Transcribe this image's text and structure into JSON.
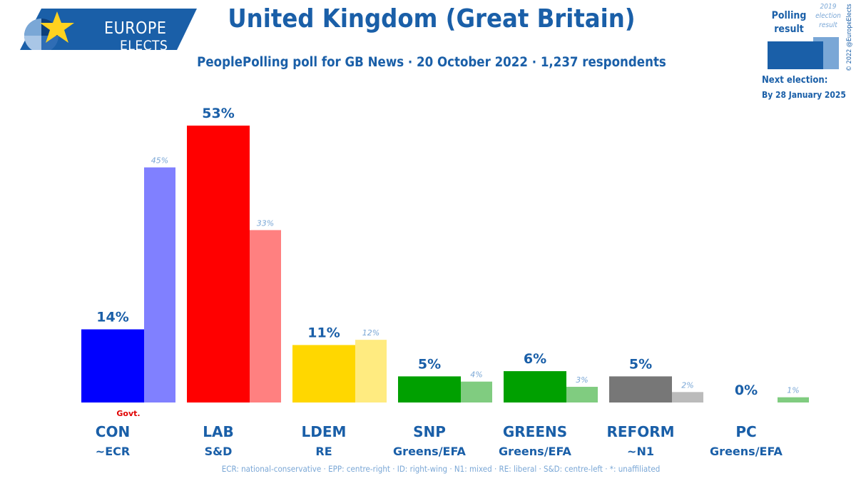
{
  "logo": {
    "line1": "EUROPE",
    "line2": "ELECTS"
  },
  "title": "United Kingdom (Great Britain)",
  "subtitle": "PeoplePolling poll for GB News · 20 October 2022 · 1,237 respondents",
  "legend": {
    "poll_label_1": "Polling",
    "poll_label_2": "result",
    "prev_label_1": "2019",
    "prev_label_2": "election",
    "prev_label_3": "result",
    "poll_color": "#1a5fa8",
    "prev_color": "#7aa7d6"
  },
  "copyright": "© 2022 @EuropeElects",
  "next_election": {
    "label": "Next election:",
    "date": "By 28 January 2025"
  },
  "govt_label": "Govt.",
  "footnote": "ECR: national-conservative · EPP: centre-right · ID: right-wing · N1: mixed · RE: liberal · S&D: centre-left · *: unaffiliated",
  "chart_data": {
    "type": "bar",
    "categories": [
      "CON",
      "LAB",
      "LDEM",
      "SNP",
      "GREENS",
      "REFORM",
      "PC"
    ],
    "groups": [
      "~ECR",
      "S&D",
      "RE",
      "Greens/EFA",
      "Greens/EFA",
      "~N1",
      "Greens/EFA"
    ],
    "government": [
      "CON"
    ],
    "series": [
      {
        "name": "Polling result",
        "values": [
          14,
          53,
          11,
          5,
          6,
          5,
          0
        ],
        "labels": [
          "14%",
          "53%",
          "11%",
          "5%",
          "6%",
          "5%",
          "0%"
        ]
      },
      {
        "name": "2019 election result",
        "values": [
          45,
          33,
          12,
          4,
          3,
          2,
          1
        ],
        "labels": [
          "45%",
          "33%",
          "12%",
          "4%",
          "3%",
          "2%",
          "1%"
        ]
      }
    ],
    "colors": [
      "#0000ff",
      "#ff0000",
      "#ffd700",
      "#00a000",
      "#00a000",
      "#777777",
      "#00a000"
    ],
    "prev_colors": [
      "#8080ff",
      "#ff8080",
      "#ffeb80",
      "#80cc80",
      "#80cc80",
      "#bbbbbb",
      "#80cc80"
    ],
    "ylim": [
      0,
      53
    ]
  }
}
